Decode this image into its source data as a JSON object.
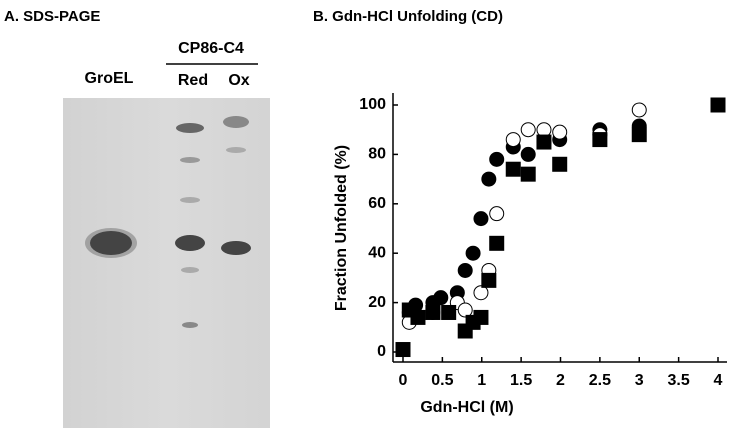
{
  "gel": {
    "title": "A. SDS-PAGE",
    "lanes": [
      "GroEL",
      "Red",
      "Ox"
    ],
    "group_label": "CP86-C4"
  },
  "chart_data": {
    "type": "scatter",
    "title": "B. Gdn-HCl Unfolding (CD)",
    "x_label": "Gdn-HCl (M)",
    "y_label": "Fraction Unfolded (%)",
    "xlim": [
      0,
      4
    ],
    "xticks": [
      0,
      0.5,
      1,
      1.5,
      2,
      2.5,
      3,
      3.5,
      4
    ],
    "ylim": [
      0,
      100
    ],
    "yticks": [
      0,
      20,
      40,
      60,
      80,
      100
    ],
    "series": [
      {
        "marker": "circle",
        "color": "#000000",
        "fill": "#000000",
        "x": [
          0.08,
          0.16,
          0.38,
          0.48,
          0.69,
          0.79,
          0.89,
          0.99,
          1.09,
          1.19,
          1.4,
          1.59,
          1.79,
          1.99,
          2.5,
          3.0
        ],
        "values": [
          16,
          19,
          20,
          22,
          24,
          33,
          40,
          54,
          70,
          78,
          83,
          80,
          85,
          86,
          90,
          91.5
        ]
      },
      {
        "marker": "circle",
        "color": "#000000",
        "fill": "#ffffff",
        "x": [
          0.08,
          0.38,
          0.69,
          0.79,
          0.99,
          1.09,
          1.19,
          1.4,
          1.59,
          1.79,
          1.99,
          2.5,
          3.0
        ],
        "values": [
          12,
          16,
          20,
          17,
          24,
          33,
          56,
          86,
          90,
          90,
          89,
          88,
          98
        ]
      },
      {
        "marker": "square",
        "color": "#000000",
        "fill": "#000000",
        "x": [
          0,
          0.08,
          0.19,
          0.38,
          0.58,
          0.79,
          0.89,
          0.99,
          1.09,
          1.19,
          1.4,
          1.59,
          1.79,
          1.99,
          2.5,
          3.0,
          4.0
        ],
        "values": [
          1,
          17,
          14,
          16,
          16,
          8.5,
          12,
          14,
          29,
          44,
          74,
          72,
          85,
          76,
          86,
          88,
          100
        ]
      }
    ]
  }
}
